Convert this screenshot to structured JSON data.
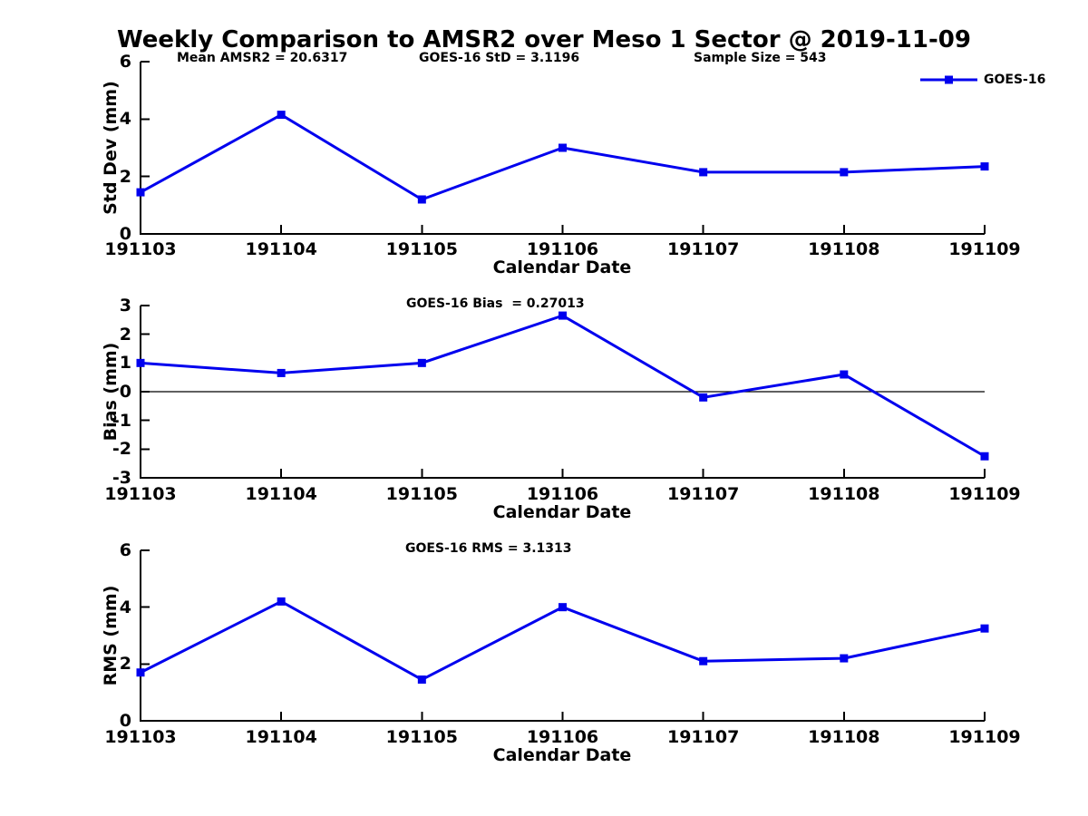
{
  "title": "Weekly Comparison to AMSR2 over Meso 1 Sector @ 2019-11-09",
  "legend": {
    "label": "GOES-16"
  },
  "colors": {
    "line": "#0000EE",
    "axis": "#000000",
    "zero_line": "#000000",
    "background": "#FFFFFF",
    "text": "#000000"
  },
  "chart_data": [
    {
      "type": "line",
      "name": "std-dev",
      "marker": "square",
      "grid": false,
      "legend_position": "top-right",
      "xlabel": "Calendar Date",
      "ylabel": "Std Dev (mm)",
      "categories": [
        "191103",
        "191104",
        "191105",
        "191106",
        "191107",
        "191108",
        "191109"
      ],
      "series": [
        {
          "name": "GOES-16",
          "values": [
            1.45,
            4.15,
            1.2,
            3.0,
            2.15,
            2.15,
            2.35
          ]
        }
      ],
      "ylim": [
        0,
        6
      ],
      "yticks": [
        0,
        2,
        4,
        6
      ],
      "zero_line": false,
      "annotations": [
        "Mean AMSR2 = 20.6317",
        "GOES-16 StD = 3.1196",
        "Sample Size = 543"
      ]
    },
    {
      "type": "line",
      "name": "bias",
      "marker": "square",
      "grid": false,
      "xlabel": "Calendar Date",
      "ylabel": "Bias (mm)",
      "categories": [
        "191103",
        "191104",
        "191105",
        "191106",
        "191107",
        "191108",
        "191109"
      ],
      "series": [
        {
          "name": "GOES-16",
          "values": [
            1.0,
            0.65,
            1.0,
            2.65,
            -0.2,
            0.6,
            -2.25
          ]
        }
      ],
      "ylim": [
        -3,
        3
      ],
      "yticks": [
        -3,
        -2,
        -1,
        0,
        1,
        2,
        3
      ],
      "zero_line": true,
      "annotations": [
        "GOES-16 Bias  = 0.27013"
      ]
    },
    {
      "type": "line",
      "name": "rms",
      "marker": "square",
      "grid": false,
      "xlabel": "Calendar Date",
      "ylabel": "RMS (mm)",
      "categories": [
        "191103",
        "191104",
        "191105",
        "191106",
        "191107",
        "191108",
        "191109"
      ],
      "series": [
        {
          "name": "GOES-16",
          "values": [
            1.7,
            4.2,
            1.45,
            4.0,
            2.1,
            2.2,
            3.25
          ]
        }
      ],
      "ylim": [
        0,
        6
      ],
      "yticks": [
        0,
        2,
        4,
        6
      ],
      "zero_line": false,
      "annotations": [
        "GOES-16 RMS = 3.1313"
      ]
    }
  ]
}
